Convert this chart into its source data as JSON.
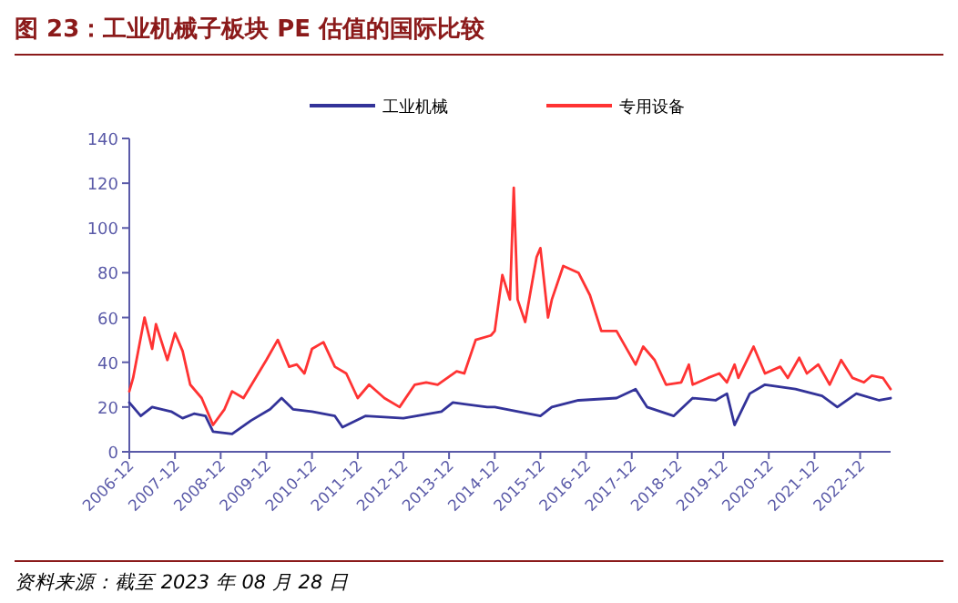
{
  "chart_data": {
    "type": "line",
    "title": "图 23：工业机械子板块 PE 估值的国际比较",
    "annotations": [
      "资料来源：截至 2023 年 08 月 28 日"
    ],
    "legend": "top",
    "grid": false,
    "marker": "none",
    "line_style": "solid",
    "xlim": [
      "2006-12",
      "2023-08"
    ],
    "xticks": [
      "2006-12",
      "2007-12",
      "2008-12",
      "2009-12",
      "2010-12",
      "2011-12",
      "2012-12",
      "2013-12",
      "2014-12",
      "2015-12",
      "2016-12",
      "2017-12",
      "2018-12",
      "2019-12",
      "2020-12",
      "2021-12",
      "2022-12"
    ],
    "ylim": [
      0,
      140
    ],
    "yticks": [
      0,
      20,
      40,
      60,
      80,
      100,
      120,
      140
    ],
    "series": [
      {
        "name": "工业机械",
        "color": "#333399",
        "x": [
          "2006-12",
          "2007-03",
          "2007-06",
          "2007-11",
          "2008-02",
          "2008-05",
          "2008-08",
          "2008-10",
          "2009-03",
          "2009-08",
          "2010-01",
          "2010-04",
          "2010-07",
          "2010-12",
          "2011-06",
          "2011-08",
          "2012-02",
          "2012-12",
          "2013-10",
          "2014-01",
          "2014-10",
          "2014-12",
          "2015-12",
          "2016-03",
          "2016-10",
          "2017-08",
          "2018-01",
          "2018-04",
          "2018-11",
          "2019-04",
          "2019-10",
          "2020-01",
          "2020-03",
          "2020-07",
          "2020-11",
          "2021-07",
          "2022-02",
          "2022-06",
          "2022-11",
          "2023-05",
          "2023-08"
        ],
        "values": [
          22,
          16,
          20,
          18,
          15,
          17,
          16,
          9,
          8,
          14,
          19,
          24,
          19,
          18,
          16,
          11,
          16,
          15,
          18,
          22,
          20,
          20,
          16,
          20,
          23,
          24,
          28,
          20,
          16,
          24,
          23,
          26,
          12,
          26,
          30,
          28,
          25,
          20,
          26,
          23,
          24
        ]
      },
      {
        "name": "专用设备",
        "color": "#ff3333",
        "x": [
          "2006-12",
          "2007-01",
          "2007-04",
          "2007-06",
          "2007-07",
          "2007-10",
          "2007-12",
          "2008-02",
          "2008-04",
          "2008-07",
          "2008-10",
          "2009-01",
          "2009-03",
          "2009-06",
          "2009-12",
          "2010-03",
          "2010-06",
          "2010-08",
          "2010-10",
          "2010-12",
          "2011-03",
          "2011-06",
          "2011-09",
          "2011-12",
          "2012-03",
          "2012-07",
          "2012-11",
          "2013-03",
          "2013-06",
          "2013-09",
          "2014-02",
          "2014-04",
          "2014-07",
          "2014-11",
          "2014-12",
          "2015-02",
          "2015-04",
          "2015-05",
          "2015-06",
          "2015-08",
          "2015-11",
          "2015-12",
          "2016-02",
          "2016-03",
          "2016-06",
          "2016-10",
          "2017-01",
          "2017-04",
          "2017-08",
          "2017-11",
          "2018-01",
          "2018-03",
          "2018-06",
          "2018-09",
          "2019-01",
          "2019-03",
          "2019-04",
          "2019-08",
          "2019-11",
          "2020-01",
          "2020-03",
          "2020-04",
          "2020-08",
          "2020-11",
          "2021-03",
          "2021-05",
          "2021-08",
          "2021-10",
          "2022-01",
          "2022-04",
          "2022-07",
          "2022-10",
          "2023-01",
          "2023-03",
          "2023-06",
          "2023-08"
        ],
        "values": [
          27,
          33,
          60,
          46,
          57,
          41,
          53,
          45,
          30,
          24,
          12,
          19,
          27,
          24,
          41,
          50,
          38,
          39,
          35,
          46,
          49,
          38,
          35,
          24,
          30,
          24,
          20,
          30,
          31,
          30,
          36,
          35,
          50,
          52,
          54,
          79,
          68,
          118,
          68,
          58,
          87,
          91,
          60,
          68,
          83,
          80,
          70,
          54,
          54,
          45,
          39,
          47,
          41,
          30,
          31,
          39,
          30,
          33,
          35,
          31,
          39,
          33,
          47,
          35,
          38,
          33,
          42,
          35,
          39,
          30,
          41,
          33,
          31,
          34,
          33,
          28
        ]
      }
    ]
  }
}
